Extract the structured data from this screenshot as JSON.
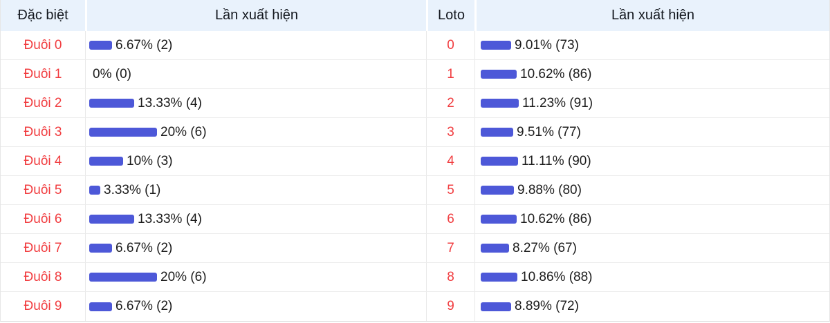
{
  "header": {
    "special": "Đặc biệt",
    "occurrences_left": "Lần xuất hiện",
    "loto": "Loto",
    "occurrences_right": "Lần xuất hiện"
  },
  "colors": {
    "bar": "#4d58d8",
    "red_label": "#f13c3f",
    "header_bg": "#e9f2fc"
  },
  "rows": [
    {
      "special_label": "Đuôi 0",
      "special_pct": 6.67,
      "special_value": "6.67% (2)",
      "loto_label": "0",
      "loto_pct": 9.01,
      "loto_value": "9.01% (73)"
    },
    {
      "special_label": "Đuôi 1",
      "special_pct": 0,
      "special_value": "0% (0)",
      "loto_label": "1",
      "loto_pct": 10.62,
      "loto_value": "10.62% (86)"
    },
    {
      "special_label": "Đuôi 2",
      "special_pct": 13.33,
      "special_value": "13.33% (4)",
      "loto_label": "2",
      "loto_pct": 11.23,
      "loto_value": "11.23% (91)"
    },
    {
      "special_label": "Đuôi 3",
      "special_pct": 20,
      "special_value": "20% (6)",
      "loto_label": "3",
      "loto_pct": 9.51,
      "loto_value": "9.51% (77)"
    },
    {
      "special_label": "Đuôi 4",
      "special_pct": 10,
      "special_value": "10% (3)",
      "loto_label": "4",
      "loto_pct": 11.11,
      "loto_value": "11.11% (90)"
    },
    {
      "special_label": "Đuôi 5",
      "special_pct": 3.33,
      "special_value": "3.33% (1)",
      "loto_label": "5",
      "loto_pct": 9.88,
      "loto_value": "9.88% (80)"
    },
    {
      "special_label": "Đuôi 6",
      "special_pct": 13.33,
      "special_value": "13.33% (4)",
      "loto_label": "6",
      "loto_pct": 10.62,
      "loto_value": "10.62% (86)"
    },
    {
      "special_label": "Đuôi 7",
      "special_pct": 6.67,
      "special_value": "6.67% (2)",
      "loto_label": "7",
      "loto_pct": 8.27,
      "loto_value": "8.27% (67)"
    },
    {
      "special_label": "Đuôi 8",
      "special_pct": 20,
      "special_value": "20% (6)",
      "loto_label": "8",
      "loto_pct": 10.86,
      "loto_value": "10.86% (88)"
    },
    {
      "special_label": "Đuôi 9",
      "special_pct": 6.67,
      "special_value": "6.67% (2)",
      "loto_label": "9",
      "loto_pct": 8.89,
      "loto_value": "8.89% (72)"
    }
  ],
  "chart_data": [
    {
      "type": "bar",
      "title": "Đặc biệt — Lần xuất hiện",
      "categories": [
        "Đuôi 0",
        "Đuôi 1",
        "Đuôi 2",
        "Đuôi 3",
        "Đuôi 4",
        "Đuôi 5",
        "Đuôi 6",
        "Đuôi 7",
        "Đuôi 8",
        "Đuôi 9"
      ],
      "values_percent": [
        6.67,
        0,
        13.33,
        20,
        10,
        3.33,
        13.33,
        6.67,
        20,
        6.67
      ],
      "counts": [
        2,
        0,
        4,
        6,
        3,
        1,
        4,
        2,
        6,
        2
      ],
      "orientation": "horizontal",
      "bar_color": "#4d58d8"
    },
    {
      "type": "bar",
      "title": "Loto — Lần xuất hiện",
      "categories": [
        "0",
        "1",
        "2",
        "3",
        "4",
        "5",
        "6",
        "7",
        "8",
        "9"
      ],
      "values_percent": [
        9.01,
        10.62,
        11.23,
        9.51,
        11.11,
        9.88,
        10.62,
        8.27,
        10.86,
        8.89
      ],
      "counts": [
        73,
        86,
        91,
        77,
        90,
        80,
        86,
        67,
        88,
        72
      ],
      "orientation": "horizontal",
      "bar_color": "#4d58d8"
    }
  ]
}
